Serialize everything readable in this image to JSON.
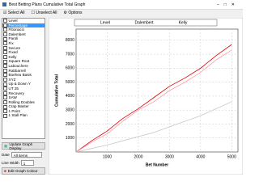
{
  "window": {
    "title": "Best Betting Plans Cumulative Total Graph"
  },
  "toolbar": {
    "select_all": "Select All",
    "unselect_all": "Unselect All",
    "options": "Options"
  },
  "list": {
    "items": [
      "Level",
      "Percentage",
      "Fibonacci",
      "Dalembert",
      "Paroli",
      "Fix",
      "Secure",
      "Fixed",
      "Kelly",
      "Square Root",
      "Labouchere",
      "Rabbarrell",
      "Boeheu Basis",
      "XYZ",
      "Up & Down Y",
      "UT 25",
      "Recovery",
      "SAW",
      "Rolling Doubles",
      "Crap Master",
      "1 Point",
      "1 Stall Plan"
    ]
  },
  "controls": {
    "update": "Update Graph Display",
    "date_label": "Date",
    "date_value": "All items",
    "line_width_label": "Line Width",
    "line_width_value": "1",
    "edit_colour": "Edit Graph Colour"
  },
  "chart_data": {
    "type": "line",
    "x_label": "Bet Number",
    "y_label": "Cumulative Total",
    "x": [
      0,
      500,
      1000,
      1500,
      2000,
      2500,
      3000,
      3500,
      4000,
      4500,
      5000
    ],
    "series": [
      {
        "name": "Level",
        "color": "#e00000",
        "values": [
          0,
          800,
          1500,
          2400,
          3100,
          3900,
          4700,
          5300,
          6000,
          6900,
          7700
        ]
      },
      {
        "name": "Dalembert",
        "color": "#ff9aaa",
        "values": [
          0,
          700,
          1300,
          2200,
          3000,
          3600,
          4400,
          5000,
          5700,
          6600,
          7300
        ]
      },
      {
        "name": "Kelly",
        "color": "#c8c8c8",
        "values": [
          0,
          250,
          500,
          800,
          1100,
          1400,
          1800,
          2200,
          2600,
          3100,
          3600
        ]
      }
    ],
    "xlim": [
      0,
      5200
    ],
    "ylim": [
      0,
      8800
    ],
    "xticks": [
      1000,
      2000,
      3000,
      4000,
      5000
    ],
    "yticks": [
      1000,
      2000,
      3000,
      4000,
      5000,
      6000,
      7000,
      8000
    ],
    "grid": true
  }
}
